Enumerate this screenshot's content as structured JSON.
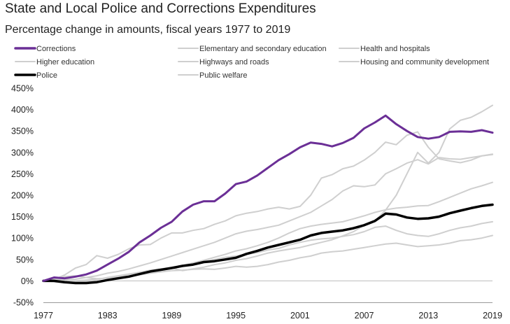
{
  "chart_data": {
    "type": "line",
    "title": "State and Local Police and Corrections Expenditures",
    "subtitle": "Percentage change in amounts, fiscal years 1977 to 2019",
    "x": [
      1977,
      1978,
      1979,
      1980,
      1981,
      1982,
      1983,
      1984,
      1985,
      1986,
      1987,
      1988,
      1989,
      1990,
      1991,
      1992,
      1993,
      1994,
      1995,
      1996,
      1997,
      1998,
      1999,
      2000,
      2001,
      2002,
      2003,
      2004,
      2005,
      2006,
      2007,
      2008,
      2009,
      2010,
      2011,
      2012,
      2013,
      2014,
      2015,
      2016,
      2017,
      2018,
      2019
    ],
    "x_ticks": [
      "1977",
      "1983",
      "1989",
      "1995",
      "2001",
      "2007",
      "2013",
      "2019"
    ],
    "y_ticks": [
      "-50%",
      "0%",
      "50%",
      "100%",
      "150%",
      "200%",
      "250%",
      "300%",
      "350%",
      "400%",
      "450%"
    ],
    "ylim": [
      -50,
      450
    ],
    "legend_placement": "top",
    "series": [
      {
        "name": "Corrections",
        "color": "#6b2f96",
        "width": 3,
        "values": [
          0,
          8,
          6,
          10,
          15,
          24,
          38,
          52,
          68,
          90,
          106,
          124,
          138,
          162,
          178,
          186,
          186,
          204,
          226,
          232,
          246,
          264,
          282,
          296,
          312,
          323,
          320,
          314,
          322,
          334,
          356,
          370,
          386,
          366,
          350,
          336,
          332,
          336,
          348,
          349,
          348,
          352,
          346
        ]
      },
      {
        "name": "Elementary and secondary education",
        "color": "#cfcfcf",
        "width": 2,
        "values": [
          0,
          2,
          1,
          0,
          2,
          4,
          7,
          10,
          15,
          20,
          25,
          28,
          32,
          36,
          42,
          48,
          55,
          62,
          70,
          75,
          82,
          90,
          100,
          112,
          122,
          128,
          132,
          135,
          138,
          145,
          152,
          160,
          166,
          170,
          172,
          175,
          176,
          185,
          195,
          205,
          215,
          222,
          230
        ]
      },
      {
        "name": "Health and hospitals",
        "color": "#cfcfcf",
        "width": 2,
        "values": [
          0,
          3,
          3,
          4,
          8,
          12,
          18,
          22,
          28,
          35,
          42,
          50,
          58,
          66,
          74,
          82,
          90,
          100,
          110,
          116,
          120,
          125,
          130,
          140,
          150,
          160,
          175,
          190,
          210,
          222,
          220,
          224,
          250,
          262,
          275,
          283,
          273,
          288,
          285,
          284,
          288,
          292,
          296
        ]
      },
      {
        "name": "Higher education",
        "color": "#cfcfcf",
        "width": 2,
        "values": [
          0,
          5,
          10,
          12,
          8,
          5,
          6,
          10,
          15,
          20,
          24,
          28,
          30,
          35,
          40,
          45,
          50,
          55,
          58,
          62,
          66,
          72,
          76,
          84,
          90,
          95,
          98,
          100,
          104,
          108,
          115,
          125,
          128,
          118,
          110,
          106,
          104,
          110,
          118,
          124,
          128,
          134,
          138
        ]
      },
      {
        "name": "Highways and roads",
        "color": "#cfcfcf",
        "width": 2,
        "values": [
          0,
          3,
          14,
          30,
          38,
          59,
          53,
          62,
          75,
          84,
          85,
          100,
          112,
          112,
          118,
          122,
          132,
          140,
          152,
          158,
          162,
          168,
          172,
          168,
          174,
          200,
          240,
          248,
          262,
          268,
          282,
          300,
          324,
          318,
          340,
          348,
          312,
          285,
          280,
          276,
          282,
          292,
          295
        ]
      },
      {
        "name": "Housing and community development",
        "color": "#cfcfcf",
        "width": 2,
        "values": [
          0,
          -2,
          -5,
          -3,
          0,
          3,
          8,
          12,
          16,
          20,
          23,
          26,
          30,
          24,
          28,
          32,
          38,
          42,
          48,
          52,
          58,
          65,
          70,
          74,
          78,
          84,
          90,
          96,
          105,
          115,
          130,
          140,
          165,
          200,
          250,
          300,
          275,
          300,
          355,
          375,
          382,
          395,
          410
        ]
      },
      {
        "name": "Public welfare",
        "color": "#cfcfcf",
        "width": 2,
        "values": [
          0,
          -1,
          -3,
          -4,
          -3,
          -1,
          2,
          6,
          10,
          14,
          18,
          21,
          24,
          25,
          27,
          28,
          27,
          30,
          34,
          32,
          34,
          38,
          44,
          48,
          54,
          58,
          65,
          68,
          70,
          74,
          78,
          82,
          86,
          88,
          84,
          80,
          82,
          84,
          88,
          94,
          96,
          100,
          106
        ]
      },
      {
        "name": "Police",
        "color": "#000000",
        "width": 3.5,
        "values": [
          0,
          0,
          -3,
          -5,
          -5,
          -3,
          2,
          6,
          10,
          16,
          22,
          26,
          30,
          35,
          38,
          44,
          46,
          50,
          54,
          63,
          70,
          78,
          84,
          90,
          96,
          106,
          112,
          115,
          118,
          123,
          130,
          140,
          157,
          155,
          148,
          145,
          146,
          150,
          158,
          164,
          170,
          175,
          178
        ]
      }
    ],
    "legend_order": [
      "Corrections",
      "Elementary and secondary education",
      "Health and hospitals",
      "Higher education",
      "Highways and roads",
      "Housing and community development",
      "Police",
      "Public welfare"
    ]
  }
}
